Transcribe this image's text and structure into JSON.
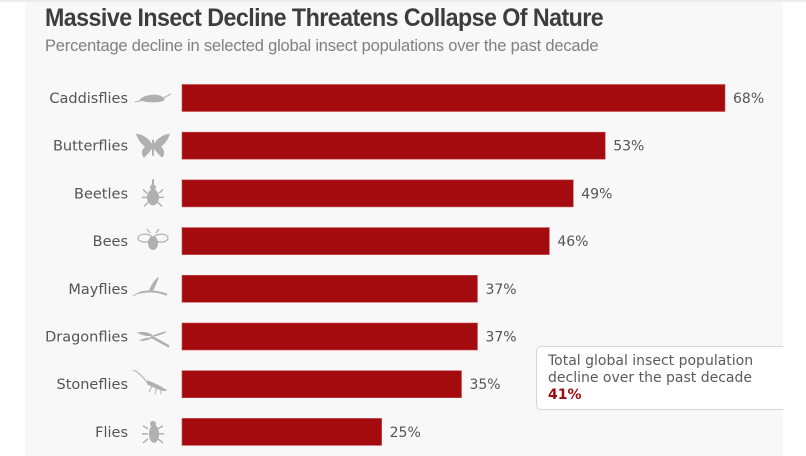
{
  "chart_data": {
    "type": "bar",
    "orientation": "horizontal",
    "title": "Massive Insect Decline Threatens Collapse Of Nature",
    "subtitle": "Percentage decline in selected global insect populations over the past decade",
    "categories": [
      "Caddisflies",
      "Butterflies",
      "Beetles",
      "Bees",
      "Mayflies",
      "Dragonflies",
      "Stoneflies",
      "Flies"
    ],
    "values": [
      68,
      53,
      49,
      46,
      37,
      37,
      35,
      25
    ],
    "value_labels": [
      "68%",
      "53%",
      "49%",
      "46%",
      "37%",
      "37%",
      "35%",
      "25%"
    ],
    "icons": [
      "caddisfly-icon",
      "butterfly-icon",
      "beetle-icon",
      "bee-icon",
      "mayfly-icon",
      "dragonfly-icon",
      "stonefly-icon",
      "fly-icon"
    ],
    "xlabel": "",
    "ylabel": "",
    "xlim": [
      0,
      68
    ],
    "grid": false,
    "bar_color": "#a30b0e",
    "annotation": {
      "text": "Total global insect population decline over the past decade",
      "value": "41%",
      "value_color": "#a00b0f"
    }
  }
}
